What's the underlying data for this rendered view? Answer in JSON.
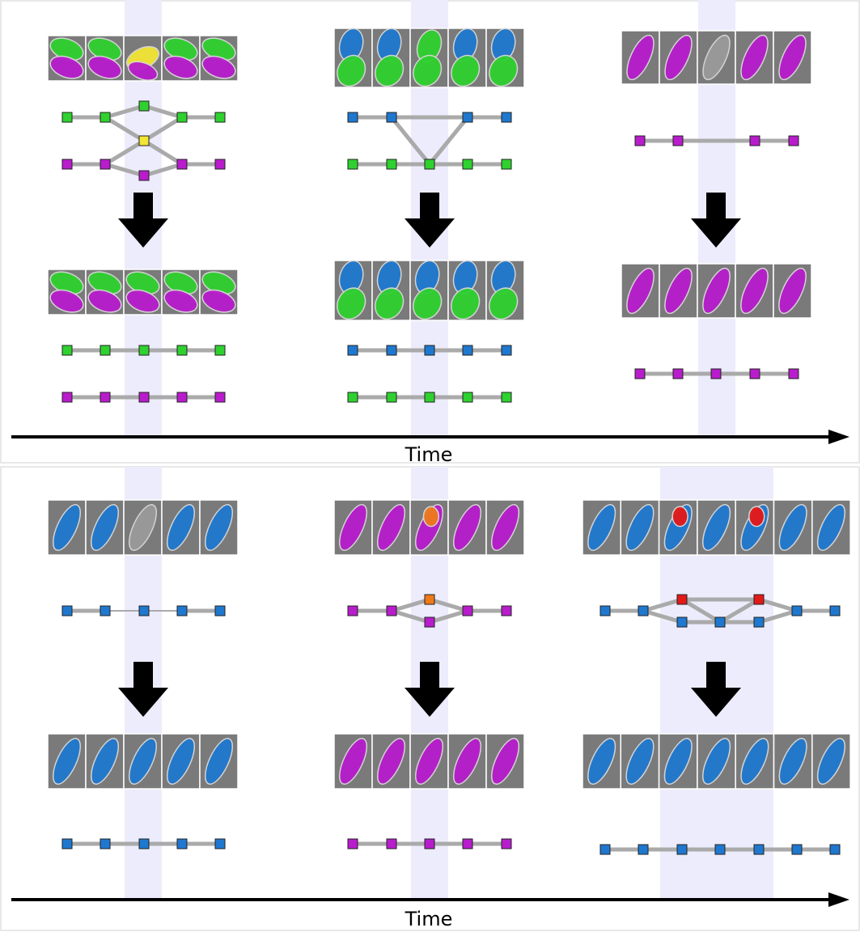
{
  "panels": [
    {
      "axis_label": "Time"
    },
    {
      "axis_label": "Time"
    }
  ]
}
